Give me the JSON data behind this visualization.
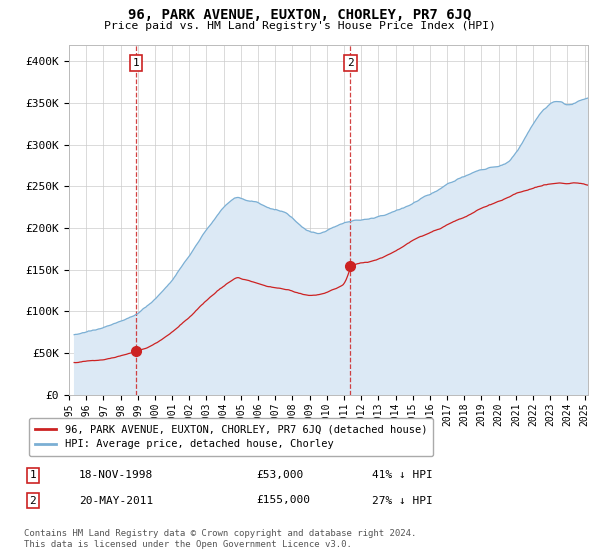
{
  "title": "96, PARK AVENUE, EUXTON, CHORLEY, PR7 6JQ",
  "subtitle": "Price paid vs. HM Land Registry's House Price Index (HPI)",
  "ylim": [
    0,
    420000
  ],
  "yticks": [
    0,
    50000,
    100000,
    150000,
    200000,
    250000,
    300000,
    350000,
    400000
  ],
  "ytick_labels": [
    "£0",
    "£50K",
    "£100K",
    "£150K",
    "£200K",
    "£250K",
    "£300K",
    "£350K",
    "£400K"
  ],
  "xlim_start": 1995.3,
  "xlim_end": 2025.2,
  "hpi_color": "#7bafd4",
  "hpi_fill_color": "#dce9f5",
  "price_color": "#cc2222",
  "marker_color": "#cc2222",
  "dashed_color": "#cc2222",
  "sale1_date": 1998.88,
  "sale1_price": 53000,
  "sale2_date": 2011.38,
  "sale2_price": 155000,
  "legend_entry1": "96, PARK AVENUE, EUXTON, CHORLEY, PR7 6JQ (detached house)",
  "legend_entry2": "HPI: Average price, detached house, Chorley",
  "footnote": "Contains HM Land Registry data © Crown copyright and database right 2024.\nThis data is licensed under the Open Government Licence v3.0.",
  "background_color": "#ffffff",
  "grid_color": "#cccccc",
  "hpi_knots": [
    [
      1995.3,
      75000
    ],
    [
      1996.0,
      78000
    ],
    [
      1997.0,
      83000
    ],
    [
      1998.0,
      90000
    ],
    [
      1999.0,
      100000
    ],
    [
      2000.0,
      118000
    ],
    [
      2001.0,
      140000
    ],
    [
      2002.0,
      170000
    ],
    [
      2003.0,
      200000
    ],
    [
      2004.0,
      225000
    ],
    [
      2004.7,
      237000
    ],
    [
      2005.3,
      232000
    ],
    [
      2006.0,
      228000
    ],
    [
      2006.5,
      222000
    ],
    [
      2007.0,
      220000
    ],
    [
      2007.5,
      218000
    ],
    [
      2008.0,
      210000
    ],
    [
      2008.5,
      200000
    ],
    [
      2009.0,
      193000
    ],
    [
      2009.5,
      192000
    ],
    [
      2010.0,
      196000
    ],
    [
      2010.5,
      200000
    ],
    [
      2011.0,
      204000
    ],
    [
      2011.5,
      207000
    ],
    [
      2012.0,
      207000
    ],
    [
      2012.5,
      208000
    ],
    [
      2013.0,
      210000
    ],
    [
      2013.5,
      214000
    ],
    [
      2014.0,
      218000
    ],
    [
      2014.5,
      224000
    ],
    [
      2015.0,
      230000
    ],
    [
      2015.5,
      236000
    ],
    [
      2016.0,
      240000
    ],
    [
      2016.5,
      246000
    ],
    [
      2017.0,
      252000
    ],
    [
      2017.5,
      256000
    ],
    [
      2018.0,
      260000
    ],
    [
      2018.5,
      265000
    ],
    [
      2019.0,
      268000
    ],
    [
      2019.5,
      272000
    ],
    [
      2020.0,
      274000
    ],
    [
      2020.5,
      280000
    ],
    [
      2021.0,
      292000
    ],
    [
      2021.5,
      310000
    ],
    [
      2022.0,
      328000
    ],
    [
      2022.5,
      342000
    ],
    [
      2023.0,
      352000
    ],
    [
      2023.5,
      355000
    ],
    [
      2024.0,
      352000
    ],
    [
      2024.5,
      356000
    ],
    [
      2025.0,
      360000
    ],
    [
      2025.2,
      361000
    ]
  ],
  "price_knots": [
    [
      1995.3,
      40000
    ],
    [
      1996.0,
      42000
    ],
    [
      1997.0,
      44000
    ],
    [
      1998.0,
      48000
    ],
    [
      1998.88,
      53000
    ],
    [
      1999.5,
      57000
    ],
    [
      2000.0,
      62000
    ],
    [
      2001.0,
      76000
    ],
    [
      2002.0,
      95000
    ],
    [
      2003.0,
      115000
    ],
    [
      2004.0,
      132000
    ],
    [
      2004.7,
      142000
    ],
    [
      2005.0,
      140000
    ],
    [
      2005.5,
      138000
    ],
    [
      2006.0,
      135000
    ],
    [
      2006.5,
      132000
    ],
    [
      2007.0,
      130000
    ],
    [
      2007.5,
      128000
    ],
    [
      2008.0,
      125000
    ],
    [
      2008.5,
      122000
    ],
    [
      2009.0,
      120000
    ],
    [
      2009.5,
      122000
    ],
    [
      2010.0,
      124000
    ],
    [
      2010.5,
      128000
    ],
    [
      2011.0,
      133000
    ],
    [
      2011.38,
      155000
    ],
    [
      2011.5,
      156000
    ],
    [
      2012.0,
      158000
    ],
    [
      2012.5,
      160000
    ],
    [
      2013.0,
      163000
    ],
    [
      2013.5,
      167000
    ],
    [
      2014.0,
      172000
    ],
    [
      2014.5,
      178000
    ],
    [
      2015.0,
      184000
    ],
    [
      2015.5,
      189000
    ],
    [
      2016.0,
      193000
    ],
    [
      2016.5,
      198000
    ],
    [
      2017.0,
      203000
    ],
    [
      2017.5,
      208000
    ],
    [
      2018.0,
      212000
    ],
    [
      2018.5,
      217000
    ],
    [
      2019.0,
      222000
    ],
    [
      2019.5,
      226000
    ],
    [
      2020.0,
      230000
    ],
    [
      2020.5,
      235000
    ],
    [
      2021.0,
      240000
    ],
    [
      2021.5,
      244000
    ],
    [
      2022.0,
      247000
    ],
    [
      2022.5,
      250000
    ],
    [
      2023.0,
      252000
    ],
    [
      2023.5,
      253000
    ],
    [
      2024.0,
      252000
    ],
    [
      2024.5,
      253000
    ],
    [
      2025.0,
      252000
    ],
    [
      2025.2,
      251000
    ]
  ]
}
